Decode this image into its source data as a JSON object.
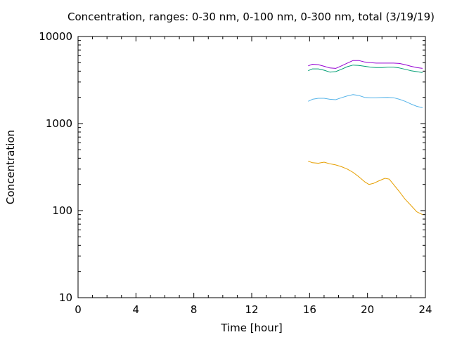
{
  "chart_data": {
    "type": "line",
    "title": "Concentration, ranges: 0-30 nm, 0-100 nm, 0-300 nm, total (3/19/19)",
    "xlabel": "Time [hour]",
    "ylabel": "Concentration",
    "xlim": [
      0,
      24
    ],
    "ylim": [
      10,
      10000
    ],
    "yscale": "log",
    "xticks": [
      0,
      4,
      8,
      12,
      16,
      20,
      24
    ],
    "yticks": [
      10,
      100,
      1000,
      10000
    ],
    "ytick_labels": [
      "10",
      "100",
      "1000",
      "10000"
    ],
    "grid": false,
    "legend": "none",
    "series": [
      {
        "color": "#e69f00",
        "x": [
          15.9,
          16.2,
          16.6,
          17.0,
          17.4,
          17.8,
          18.2,
          18.6,
          19.0,
          19.4,
          19.8,
          20.1,
          20.4,
          20.8,
          21.2,
          21.5,
          21.8,
          22.2,
          22.6,
          23.0,
          23.4,
          23.8
        ],
        "y": [
          370,
          355,
          350,
          360,
          345,
          335,
          320,
          300,
          275,
          245,
          215,
          200,
          205,
          220,
          235,
          230,
          200,
          165,
          135,
          115,
          97,
          90
        ]
      },
      {
        "color": "#56b4e9",
        "x": [
          15.9,
          16.2,
          16.6,
          17.0,
          17.4,
          17.8,
          18.2,
          18.6,
          19.0,
          19.4,
          19.8,
          20.2,
          20.6,
          21.0,
          21.4,
          21.8,
          22.2,
          22.6,
          23.0,
          23.4,
          23.8
        ],
        "y": [
          1800,
          1900,
          1950,
          1950,
          1900,
          1880,
          1980,
          2080,
          2150,
          2100,
          2000,
          1980,
          1980,
          1990,
          2000,
          1980,
          1900,
          1800,
          1680,
          1580,
          1520
        ]
      },
      {
        "color": "#009e73",
        "x": [
          15.9,
          16.2,
          16.6,
          17.0,
          17.4,
          17.8,
          18.2,
          18.6,
          19.0,
          19.4,
          19.8,
          20.2,
          20.6,
          21.0,
          21.4,
          21.8,
          22.2,
          22.6,
          23.0,
          23.4,
          23.8
        ],
        "y": [
          4050,
          4250,
          4250,
          4100,
          3900,
          3950,
          4200,
          4500,
          4700,
          4650,
          4550,
          4450,
          4400,
          4400,
          4450,
          4450,
          4350,
          4200,
          4050,
          3950,
          3850
        ]
      },
      {
        "color": "#9400d3",
        "x": [
          15.9,
          16.2,
          16.6,
          17.0,
          17.4,
          17.8,
          18.2,
          18.6,
          19.0,
          19.4,
          19.8,
          20.2,
          20.6,
          21.0,
          21.4,
          21.8,
          22.2,
          22.6,
          23.0,
          23.4,
          23.8
        ],
        "y": [
          4600,
          4800,
          4750,
          4550,
          4350,
          4300,
          4600,
          4950,
          5300,
          5300,
          5100,
          5000,
          4950,
          4950,
          4950,
          4950,
          4900,
          4750,
          4550,
          4400,
          4300
        ]
      }
    ]
  }
}
